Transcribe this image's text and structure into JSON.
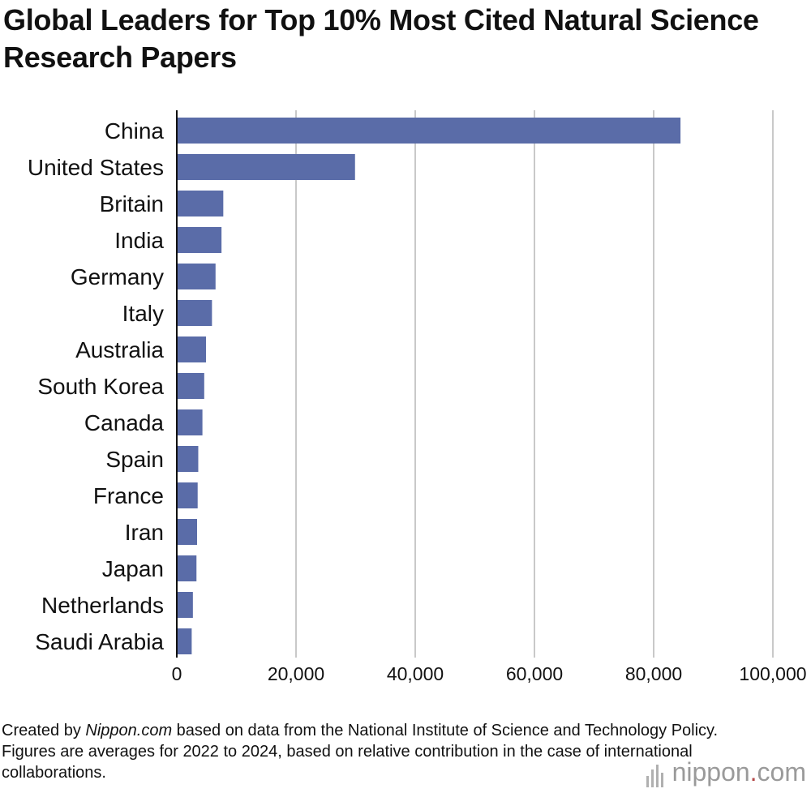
{
  "title": "Global Leaders for Top 10% Most Cited Natural Science Research Papers",
  "source": {
    "prefix": "Created by ",
    "brand": "Nippon.com",
    "suffix": " based on data from the National Institute of Science and Technology Policy. Figures are averages for 2022 to 2024, based on relative contribution in the case of international collaborations."
  },
  "logo": {
    "name": "nippon",
    "dot": ".",
    "tld": "com"
  },
  "colors": {
    "bar": "#5a6ca8",
    "grid": "#c9c9c9",
    "axis": "#111111"
  },
  "chart_data": {
    "type": "bar",
    "orientation": "horizontal",
    "categories": [
      "China",
      "United States",
      "Britain",
      "India",
      "Germany",
      "Italy",
      "Australia",
      "South Korea",
      "Canada",
      "Spain",
      "France",
      "Iran",
      "Japan",
      "Netherlands",
      "Saudi Arabia"
    ],
    "values": [
      84500,
      29900,
      7800,
      7500,
      6500,
      5900,
      4900,
      4600,
      4300,
      3600,
      3500,
      3400,
      3300,
      2700,
      2500
    ],
    "xlim": [
      0,
      100000
    ],
    "xticks": [
      0,
      20000,
      40000,
      60000,
      80000,
      100000
    ],
    "xtick_labels": [
      "0",
      "20,000",
      "40,000",
      "60,000",
      "80,000",
      "100,000"
    ],
    "grid": true,
    "legend": "none"
  }
}
